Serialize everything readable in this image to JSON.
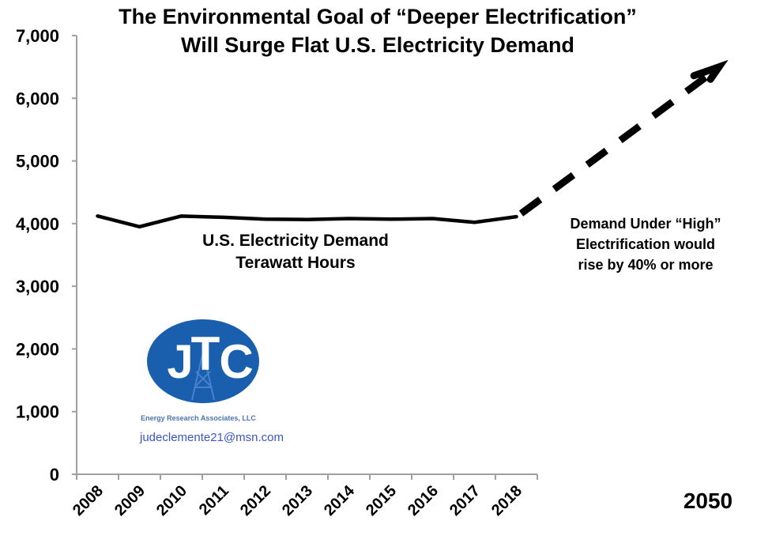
{
  "chart_data": {
    "type": "line",
    "title_lines": [
      "The Environmental Goal of “Deeper Electrification”",
      "Will Surge Flat U.S. Electricity Demand"
    ],
    "xlabel": "",
    "ylabel": "",
    "categories": [
      "2008",
      "2009",
      "2010",
      "2011",
      "2012",
      "2013",
      "2014",
      "2015",
      "2016",
      "2017",
      "2018"
    ],
    "series": [
      {
        "name": "U.S. Electricity Demand Terawatt Hours",
        "values": [
          4120,
          3950,
          4120,
          4100,
          4070,
          4065,
          4080,
          4070,
          4080,
          4020,
          4110
        ]
      }
    ],
    "projection": {
      "label": "2050",
      "style": "dashed-arrow",
      "start_value": 4110,
      "end_value_approx": 6500
    },
    "ylim": [
      0,
      7000
    ],
    "yticks": [
      0,
      1000,
      2000,
      3000,
      4000,
      5000,
      6000,
      7000
    ],
    "ytick_labels": [
      "0",
      "1,000",
      "2,000",
      "3,000",
      "4,000",
      "5,000",
      "6,000",
      "7,000"
    ],
    "grid": false,
    "legend": "none",
    "annotations": {
      "series_label_lines": [
        "U.S. Electricity Demand",
        "Terawatt Hours"
      ],
      "projection_label_lines": [
        "Demand Under “High”",
        "Electrification would",
        "rise by 40% or more"
      ]
    }
  },
  "logo": {
    "letters": [
      "J",
      "T",
      "C"
    ],
    "subtitle": "Energy Research Associates, LLC",
    "email": "judeclemente21@msn.com",
    "color": "#1a5fae"
  },
  "colors": {
    "line": "#000000",
    "axis": "#a0a0a0",
    "logo_blue": "#1a5fae",
    "email_blue": "#3a55c6"
  }
}
